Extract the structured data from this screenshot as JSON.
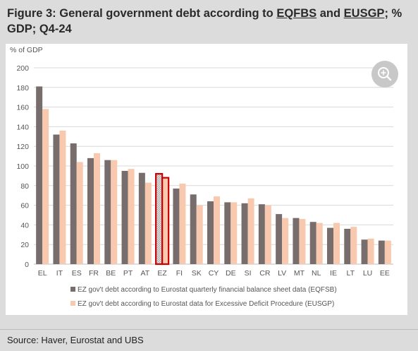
{
  "heading": {
    "part1": "Figure 3: General government debt according to ",
    "abbr1": "EQFBS",
    "part2": " and ",
    "abbr2": "EUSGP",
    "part3": "; % GDP; Q4-24"
  },
  "source": "Source: Haver, Eurostat and UBS",
  "zoom_icon": "zoom-in-icon",
  "colors": {
    "series1": "#776d6c",
    "series2": "#f8c9ae",
    "highlight": "#cc0000",
    "grid": "#d9d9d9",
    "text": "#555555"
  },
  "chart_data": {
    "type": "bar",
    "ylabel": "% of GDP",
    "ylim": [
      0,
      200
    ],
    "yticks": [
      0,
      20,
      40,
      60,
      80,
      100,
      120,
      140,
      160,
      180,
      200
    ],
    "grid": true,
    "legend_position": "bottom",
    "highlighted_category": "EZ",
    "categories": [
      "EL",
      "IT",
      "ES",
      "FR",
      "BE",
      "PT",
      "AT",
      "EZ",
      "FI",
      "SK",
      "CY",
      "DE",
      "SI",
      "CR",
      "LV",
      "MT",
      "NL",
      "IE",
      "LT",
      "LU",
      "EE"
    ],
    "series": [
      {
        "name": "EZ gov't debt according to Eurostat quarterly financial balance sheet data (EQFSB)",
        "values": [
          181,
          132,
          123,
          108,
          106,
          95,
          93,
          92,
          77,
          71,
          64,
          63,
          62,
          61,
          51,
          47,
          43,
          37,
          36,
          25,
          24
        ]
      },
      {
        "name": "EZ gov't debt according to Eurostat data for Excessive Deficit Procedure (EUSGP)",
        "values": [
          158,
          136,
          104,
          113,
          106,
          97,
          83,
          88,
          82,
          60,
          69,
          63,
          67,
          60,
          47,
          46,
          42,
          42,
          38,
          26,
          24
        ]
      }
    ]
  }
}
